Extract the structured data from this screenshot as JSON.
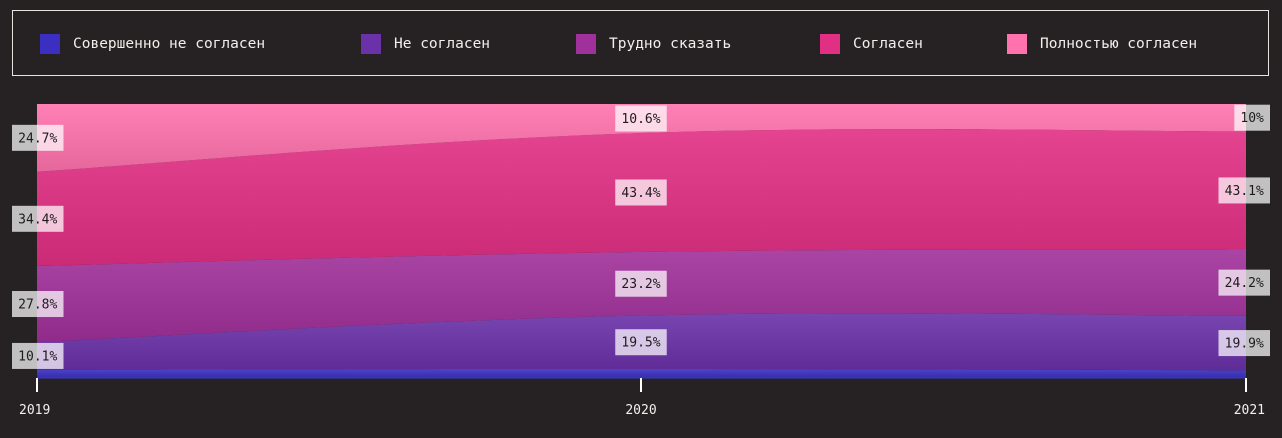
{
  "chart_data": {
    "type": "area",
    "stacked": true,
    "normalized": true,
    "categories": [
      "2019",
      "2020",
      "2021"
    ],
    "series": [
      {
        "name": "Совершенно не согласен",
        "color": "#3a2fc0",
        "values": [
          3.0,
          3.3,
          2.8
        ],
        "labels": [
          "",
          "",
          ""
        ]
      },
      {
        "name": "Не согласен",
        "color": "#6a31a8",
        "values": [
          10.1,
          19.5,
          19.9
        ],
        "labels": [
          "10.1%",
          "19.5%",
          "19.9%"
        ]
      },
      {
        "name": "Трудно сказать",
        "color": "#a0309a",
        "values": [
          27.8,
          23.2,
          24.2
        ],
        "labels": [
          "27.8%",
          "23.2%",
          "24.2%"
        ]
      },
      {
        "name": "Согласен",
        "color": "#e12f83",
        "values": [
          34.4,
          43.4,
          43.1
        ],
        "labels": [
          "34.4%",
          "43.4%",
          "43.1%"
        ]
      },
      {
        "name": "Полностью согласен",
        "color": "#ff72ad",
        "values": [
          24.7,
          10.6,
          10.0
        ],
        "labels": [
          "24.7%",
          "10.6%",
          "10%"
        ]
      }
    ],
    "ylim": [
      0,
      100
    ],
    "grid": false,
    "legend_position": "top"
  }
}
